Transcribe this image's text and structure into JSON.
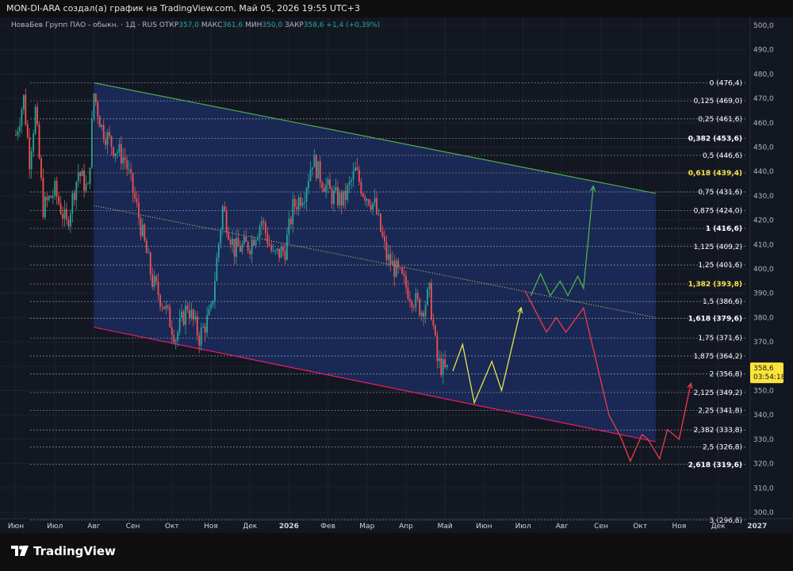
{
  "title_bar": "MON-DI-ARA создал(а) график на TradingView.com, Май 05, 2026 19:55 UTC+3",
  "legend": {
    "symbol": "НоваБев Групп ПАО - обыкн. · 1Д · RUS",
    "open_label": "ОТКР",
    "open_value": "357,0",
    "high_label": "МАКС",
    "high_value": "361,6",
    "low_label": "МИН",
    "low_value": "350,0",
    "close_label": "ЗАКР",
    "close_value": "358,6",
    "change": "+1,4 (+0,39%)"
  },
  "price_badge": {
    "price": "358,6",
    "countdown": "03:54:18",
    "color": "#fbe53a"
  },
  "footer": {
    "brand": "TradingView"
  },
  "colors": {
    "up": "#26a69a",
    "down": "#ef5350",
    "channel_fill": "#1c2b5e",
    "upper_line": "#4caf50",
    "lower_line": "#e91e63",
    "mid_line": "#e6d36a",
    "path_yellow": "#e6e64a",
    "path_green": "#4caf50",
    "path_red": "#ef3b4a"
  },
  "chart_data": {
    "type": "candlestick",
    "y_axis": {
      "min": 290,
      "max": 505,
      "ticks": [
        "300,0",
        "310,0",
        "320,0",
        "330,0",
        "340,0",
        "350,0",
        "360,0",
        "370,0",
        "380,0",
        "390,0",
        "400,0",
        "410,0",
        "420,0",
        "430,0",
        "440,0",
        "450,0",
        "460,0",
        "470,0",
        "480,0",
        "490,0",
        "500,0"
      ]
    },
    "x_axis_labels": [
      "Июн",
      "Июл",
      "Авг",
      "Сен",
      "Окт",
      "Ноя",
      "Дек",
      "2026",
      "Фев",
      "Мар",
      "Апр",
      "Май",
      "Июн",
      "Июл",
      "Авг",
      "Сен",
      "Окт",
      "Ноя",
      "Дек",
      "2027"
    ],
    "fib_levels": [
      {
        "label": "0 (476,4)",
        "value": 476.4,
        "bold": false,
        "color": "#ffffff"
      },
      {
        "label": "0,125 (469,0)",
        "value": 469.0,
        "bold": false,
        "color": "#ffffff"
      },
      {
        "label": "0,25 (461,6)",
        "value": 461.6,
        "bold": false,
        "color": "#ffffff"
      },
      {
        "label": "0,382 (453,6)",
        "value": 453.6,
        "bold": true,
        "color": "#ffffff"
      },
      {
        "label": "0,5 (446,6)",
        "value": 446.6,
        "bold": false,
        "color": "#ffffff"
      },
      {
        "label": "0,618 (439,4)",
        "value": 439.4,
        "bold": true,
        "color": "#f7e24a"
      },
      {
        "label": "0,75 (431,6)",
        "value": 431.6,
        "bold": false,
        "color": "#ffffff"
      },
      {
        "label": "0,875 (424,0)",
        "value": 424.0,
        "bold": false,
        "color": "#ffffff"
      },
      {
        "label": "1 (416,6)",
        "value": 416.6,
        "bold": true,
        "color": "#ffffff"
      },
      {
        "label": "1,125 (409,2)",
        "value": 409.2,
        "bold": false,
        "color": "#ffffff"
      },
      {
        "label": "1,25 (401,6)",
        "value": 401.6,
        "bold": false,
        "color": "#ffffff"
      },
      {
        "label": "1,382 (393,8)",
        "value": 393.8,
        "bold": true,
        "color": "#f7e24a"
      },
      {
        "label": "1,5 (386,6)",
        "value": 386.6,
        "bold": false,
        "color": "#ffffff"
      },
      {
        "label": "1,618 (379,6)",
        "value": 379.6,
        "bold": true,
        "color": "#ffffff"
      },
      {
        "label": "1,75 (371,6)",
        "value": 371.6,
        "bold": false,
        "color": "#ffffff"
      },
      {
        "label": "1,875 (364,2)",
        "value": 364.2,
        "bold": false,
        "color": "#ffffff"
      },
      {
        "label": "2 (356,8)",
        "value": 356.8,
        "bold": false,
        "color": "#ffffff"
      },
      {
        "label": "2,125 (349,2)",
        "value": 349.2,
        "bold": false,
        "color": "#ffffff"
      },
      {
        "label": "2,25 (341,8)",
        "value": 341.8,
        "bold": false,
        "color": "#ffffff"
      },
      {
        "label": "2,382 (333,8)",
        "value": 333.8,
        "bold": false,
        "color": "#ffffff"
      },
      {
        "label": "2,5 (326,8)",
        "value": 326.8,
        "bold": false,
        "color": "#ffffff"
      },
      {
        "label": "2,618 (319,6)",
        "value": 319.6,
        "bold": true,
        "color": "#ffffff"
      },
      {
        "label": "3 (296,8)",
        "value": 296.8,
        "bold": false,
        "color": "#ffffff"
      }
    ],
    "channel": {
      "start_month": 2.0,
      "end_month": 16.4,
      "upper": [
        476.4,
        431.0
      ],
      "lower": [
        376.0,
        329.0
      ],
      "mid": [
        426.0,
        380.0
      ]
    },
    "candles_monthly_path": [
      [
        0.0,
        455
      ],
      [
        0.2,
        470
      ],
      [
        0.35,
        445
      ],
      [
        0.5,
        465
      ],
      [
        0.7,
        425
      ],
      [
        1.0,
        432
      ],
      [
        1.3,
        418
      ],
      [
        1.6,
        440
      ],
      [
        1.85,
        432
      ],
      [
        2.0,
        472
      ],
      [
        2.2,
        458
      ],
      [
        2.5,
        450
      ],
      [
        2.8,
        445
      ],
      [
        3.1,
        425
      ],
      [
        3.5,
        395
      ],
      [
        3.8,
        385
      ],
      [
        4.1,
        372
      ],
      [
        4.4,
        385
      ],
      [
        4.7,
        372
      ],
      [
        5.0,
        382
      ],
      [
        5.3,
        425
      ],
      [
        5.6,
        408
      ],
      [
        6.0,
        410
      ],
      [
        6.3,
        420
      ],
      [
        6.6,
        405
      ],
      [
        6.9,
        408
      ],
      [
        7.1,
        425
      ],
      [
        7.4,
        432
      ],
      [
        7.6,
        445
      ],
      [
        7.8,
        438
      ],
      [
        8.1,
        430
      ],
      [
        8.4,
        428
      ],
      [
        8.7,
        440
      ],
      [
        8.9,
        432
      ],
      [
        9.2,
        426
      ],
      [
        9.5,
        405
      ],
      [
        9.8,
        398
      ],
      [
        10.1,
        390
      ],
      [
        10.4,
        383
      ],
      [
        10.6,
        390
      ],
      [
        10.8,
        362
      ],
      [
        11.0,
        358
      ],
      [
        11.1,
        358.6
      ]
    ],
    "forecast_paths": [
      {
        "name": "yellow",
        "points": [
          [
            11.2,
            358
          ],
          [
            11.45,
            369
          ],
          [
            11.75,
            345
          ],
          [
            12.2,
            362
          ],
          [
            12.45,
            350
          ],
          [
            12.95,
            384
          ]
        ]
      },
      {
        "name": "green",
        "points": [
          [
            13.2,
            389
          ],
          [
            13.45,
            398
          ],
          [
            13.7,
            389
          ],
          [
            13.95,
            395
          ],
          [
            14.15,
            389
          ],
          [
            14.4,
            397
          ],
          [
            14.55,
            392
          ],
          [
            14.8,
            434
          ]
        ]
      },
      {
        "name": "red",
        "points": [
          [
            13.05,
            391
          ],
          [
            13.6,
            374
          ],
          [
            13.85,
            380
          ],
          [
            14.1,
            374
          ],
          [
            14.55,
            384
          ],
          [
            15.2,
            340
          ],
          [
            15.5,
            331
          ],
          [
            15.75,
            321
          ],
          [
            16.05,
            332
          ],
          [
            16.2,
            330
          ],
          [
            16.5,
            322
          ],
          [
            16.7,
            334
          ],
          [
            17.0,
            330
          ],
          [
            17.3,
            353
          ]
        ]
      }
    ]
  }
}
